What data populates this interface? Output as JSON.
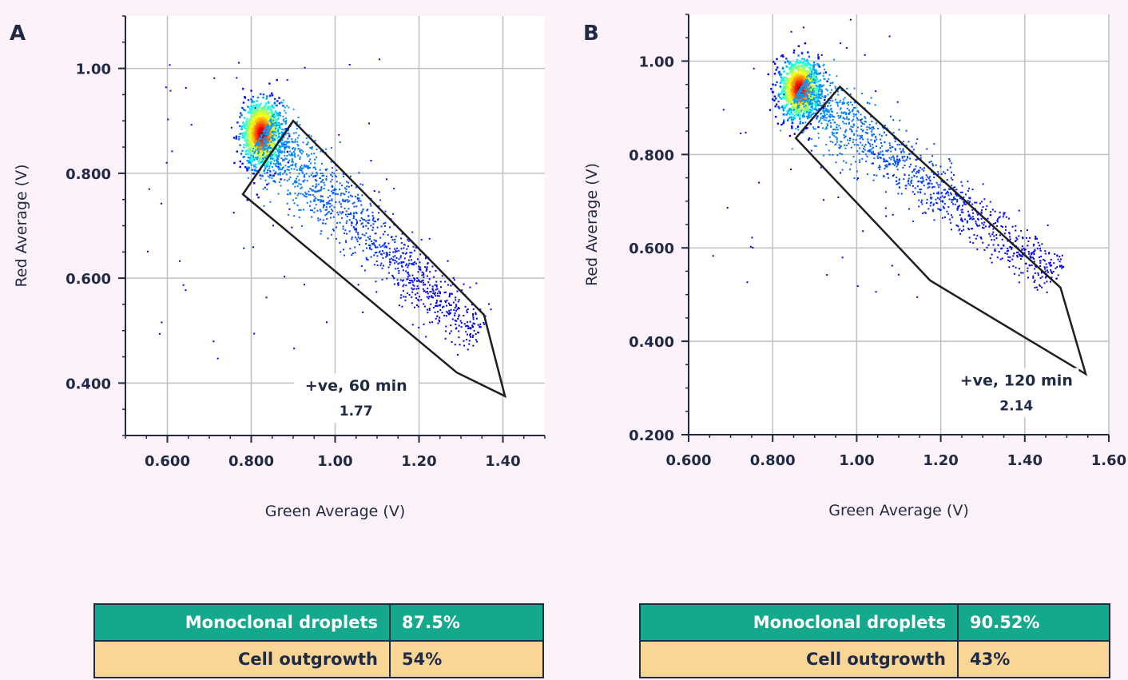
{
  "colors": {
    "background": "#fdf1fa",
    "axis": "#1f2a44",
    "grid": "#bfbfbf",
    "gate": "#1f1f1f",
    "table_header": "#14a98c",
    "table_row": "#f9d596"
  },
  "chart_data": [
    {
      "type": "scatter",
      "panel_label": "A",
      "xlabel": "Green Average (V)",
      "ylabel": "Red Average (V)",
      "xlim": [
        0.5,
        1.5
      ],
      "ylim": [
        0.3,
        1.1
      ],
      "x_ticks": [
        "0.600",
        "0.800",
        "1.00",
        "1.20",
        "1.40"
      ],
      "x_tick_values": [
        0.6,
        0.8,
        1.0,
        1.2,
        1.4
      ],
      "y_ticks": [
        "0.400",
        "0.600",
        "0.800",
        "1.00"
      ],
      "y_tick_values": [
        0.4,
        0.6,
        0.8,
        1.0
      ],
      "grid": true,
      "density_colored": true,
      "cluster_center": [
        0.825,
        0.875
      ],
      "gate_polygon": [
        [
          0.78,
          0.76
        ],
        [
          0.9,
          0.9
        ],
        [
          1.355,
          0.53
        ],
        [
          1.405,
          0.375
        ],
        [
          1.29,
          0.42
        ]
      ],
      "annotation": {
        "line1": "+ve, 60 min",
        "line2": "1.77",
        "x": 1.05,
        "y": 0.385
      }
    },
    {
      "type": "scatter",
      "panel_label": "B",
      "xlabel": "Green Average (V)",
      "ylabel": "Red Average (V)",
      "xlim": [
        0.6,
        1.6
      ],
      "ylim": [
        0.2,
        1.1
      ],
      "x_ticks": [
        "0.600",
        "0.800",
        "1.00",
        "1.20",
        "1.40",
        "1.60"
      ],
      "x_tick_values": [
        0.6,
        0.8,
        1.0,
        1.2,
        1.4,
        1.6
      ],
      "y_ticks": [
        "0.200",
        "0.400",
        "0.600",
        "0.800",
        "1.00"
      ],
      "y_tick_values": [
        0.2,
        0.4,
        0.6,
        0.8,
        1.0
      ],
      "grid": true,
      "density_colored": true,
      "cluster_center": [
        0.865,
        0.94
      ],
      "gate_polygon": [
        [
          0.855,
          0.835
        ],
        [
          0.96,
          0.945
        ],
        [
          1.485,
          0.515
        ],
        [
          1.545,
          0.33
        ],
        [
          1.175,
          0.53
        ]
      ],
      "annotation": {
        "line1": "+ve, 120 min",
        "line2": "2.14",
        "x": 1.38,
        "y": 0.305
      }
    }
  ],
  "tables": [
    {
      "rows": [
        {
          "label": "Monoclonal droplets",
          "value": "87.5%"
        },
        {
          "label": "Cell outgrowth",
          "value": "54%"
        }
      ]
    },
    {
      "rows": [
        {
          "label": "Monoclonal droplets",
          "value": "90.52%"
        },
        {
          "label": "Cell outgrowth",
          "value": "43%"
        }
      ]
    }
  ]
}
